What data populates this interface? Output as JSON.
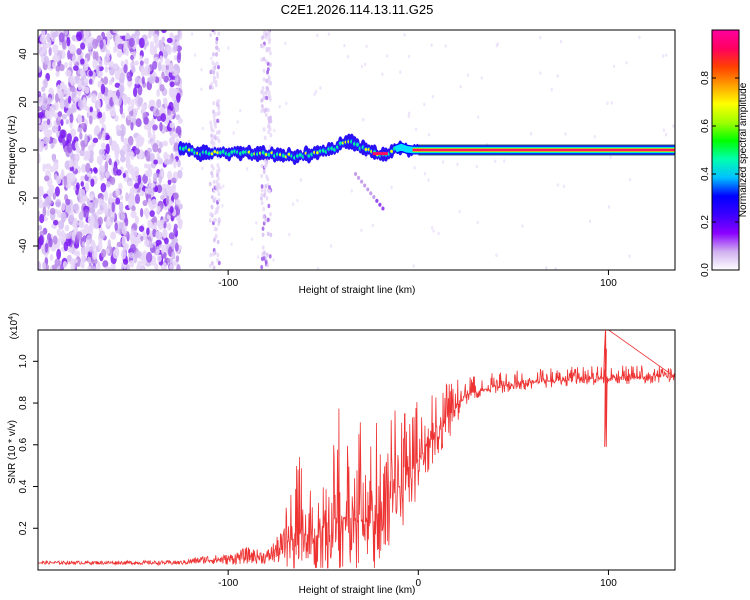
{
  "title": "C2E1.2026.114.13.11.G25",
  "chart_data": [
    {
      "type": "heatmap",
      "name": "spectrogram",
      "xlabel": "Height of straight line (km)",
      "ylabel": "Frequency (Hz)",
      "xlim": [
        -200,
        135
      ],
      "ylim": [
        -50,
        50
      ],
      "x_ticks": [
        -100,
        100
      ],
      "y_ticks": [
        -40,
        -20,
        0,
        20,
        40
      ],
      "x_tick_labels": [
        "-100",
        "100"
      ],
      "y_tick_labels": [
        "-40",
        "-20",
        "0",
        "20",
        "40"
      ],
      "colorbar": {
        "label": "Normalized spectral amplitude",
        "range": [
          0,
          1
        ],
        "ticks": [
          0.0,
          0.2,
          0.4,
          0.6,
          0.8
        ],
        "tick_labels": [
          "0.0",
          "0.2",
          "0.4",
          "0.6",
          "0.8"
        ],
        "colors": [
          "#ffffff",
          "#d0b0f0",
          "#8a00ff",
          "#3a00ff",
          "#0000ff",
          "#00c0ff",
          "#00ffb0",
          "#00ff00",
          "#a0ff00",
          "#ffff00",
          "#ffa000",
          "#ff4000",
          "#ff0060",
          "#ff00a0"
        ]
      },
      "signal_track": [
        {
          "x": -125,
          "f": 1.0
        },
        {
          "x": -115,
          "f": -1.0
        },
        {
          "x": -105,
          "f": -1.5
        },
        {
          "x": -95,
          "f": -1.0
        },
        {
          "x": -85,
          "f": -1.5
        },
        {
          "x": -75,
          "f": -2.0
        },
        {
          "x": -65,
          "f": -2.5
        },
        {
          "x": -55,
          "f": -1.5
        },
        {
          "x": -45,
          "f": 0.0
        },
        {
          "x": -38,
          "f": 3.5
        },
        {
          "x": -32,
          "f": 2.0
        },
        {
          "x": -26,
          "f": -0.5
        },
        {
          "x": -20,
          "f": -1.5
        },
        {
          "x": -14,
          "f": -1.0
        },
        {
          "x": -10,
          "f": 1.5
        },
        {
          "x": -5,
          "f": 0.0
        },
        {
          "x": 0,
          "f": 0.0
        },
        {
          "x": 135,
          "f": 0.0
        }
      ],
      "noise_band_x": [
        -200,
        -125
      ],
      "noise_columns_x": [
        -107,
        -80
      ]
    },
    {
      "type": "line",
      "name": "snr",
      "xlabel": "Height of straight line (km)",
      "ylabel": "SNR (10 * v/v)",
      "y_multiplier_label": "(x10^4)",
      "xlim": [
        -200,
        135
      ],
      "ylim": [
        0,
        1.15
      ],
      "x_ticks": [
        -100,
        0,
        100
      ],
      "y_ticks": [
        0.2,
        0.4,
        0.6,
        0.8,
        1.0
      ],
      "x_tick_labels": [
        "-100",
        "0",
        "100"
      ],
      "y_tick_labels": [
        "0.2",
        "0.4",
        "0.6",
        "0.8",
        "1.0"
      ],
      "color": "#ee3333",
      "envelope": [
        {
          "x": -200,
          "base": 0.035,
          "amp": 0.015
        },
        {
          "x": -125,
          "base": 0.035,
          "amp": 0.02
        },
        {
          "x": -112,
          "base": 0.05,
          "amp": 0.04
        },
        {
          "x": -100,
          "base": 0.05,
          "amp": 0.05
        },
        {
          "x": -90,
          "base": 0.07,
          "amp": 0.08
        },
        {
          "x": -80,
          "base": 0.06,
          "amp": 0.06
        },
        {
          "x": -70,
          "base": 0.12,
          "amp": 0.18
        },
        {
          "x": -62,
          "base": 0.2,
          "amp": 0.22
        },
        {
          "x": -55,
          "base": 0.15,
          "amp": 0.2
        },
        {
          "x": -45,
          "base": 0.25,
          "amp": 0.35
        },
        {
          "x": -35,
          "base": 0.25,
          "amp": 0.35
        },
        {
          "x": -25,
          "base": 0.22,
          "amp": 0.3
        },
        {
          "x": -15,
          "base": 0.35,
          "amp": 0.3
        },
        {
          "x": -5,
          "base": 0.45,
          "amp": 0.22
        },
        {
          "x": 5,
          "base": 0.6,
          "amp": 0.15
        },
        {
          "x": 15,
          "base": 0.72,
          "amp": 0.12
        },
        {
          "x": 25,
          "base": 0.84,
          "amp": 0.06
        },
        {
          "x": 40,
          "base": 0.88,
          "amp": 0.04
        },
        {
          "x": 60,
          "base": 0.9,
          "amp": 0.04
        },
        {
          "x": 80,
          "base": 0.91,
          "amp": 0.04
        },
        {
          "x": 100,
          "base": 0.92,
          "amp": 0.04
        },
        {
          "x": 135,
          "base": 0.93,
          "amp": 0.03
        }
      ],
      "spikes": [
        {
          "x": 98.5,
          "y": 1.16
        },
        {
          "x": 98.0,
          "y": 0.59
        },
        {
          "x": 99.0,
          "y": 1.06
        }
      ]
    }
  ]
}
